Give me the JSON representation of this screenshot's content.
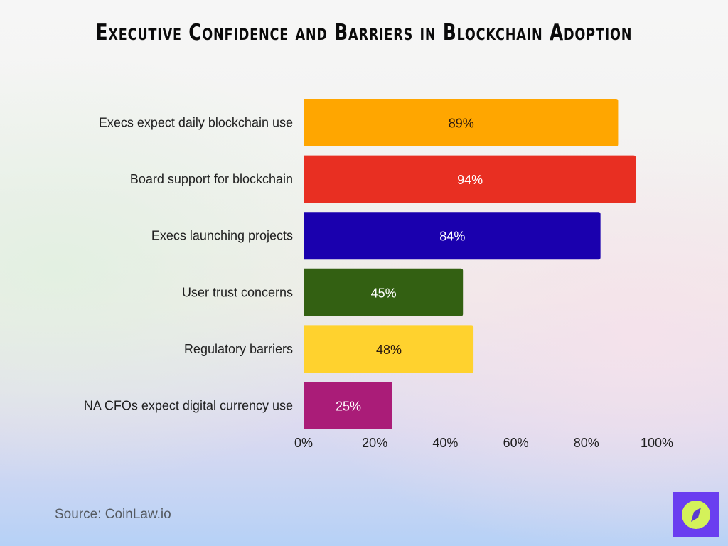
{
  "chart_data": {
    "type": "bar",
    "orientation": "horizontal",
    "title": "Executive Confidence and Barriers in Blockchain Adoption",
    "categories": [
      "Execs expect daily blockchain use",
      "Board support for blockchain",
      "Execs launching projects",
      "User trust concerns",
      "Regulatory barriers",
      "NA CFOs expect digital currency use"
    ],
    "values": [
      89,
      94,
      84,
      45,
      48,
      25
    ],
    "data_labels": [
      "89%",
      "94%",
      "84%",
      "45%",
      "48%",
      "25%"
    ],
    "colors": [
      "#FFA600",
      "#E82F22",
      "#1A00AE",
      "#336012",
      "#FFD22E",
      "#AA1C78"
    ],
    "label_colors": [
      "#2a1a10",
      "#ffffff",
      "#ffffff",
      "#ffffff",
      "#2a1a10",
      "#ffffff"
    ],
    "xlim": [
      0,
      100
    ],
    "xticks": [
      "0%",
      "20%",
      "40%",
      "60%",
      "80%",
      "100%"
    ],
    "xlabel": "",
    "ylabel": "",
    "grid": false,
    "legend": "none"
  },
  "source": "Source: CoinLaw.io",
  "logo": {
    "icon": "compass-icon",
    "background": "#6A3EF0",
    "accent": "#D4F25A"
  }
}
